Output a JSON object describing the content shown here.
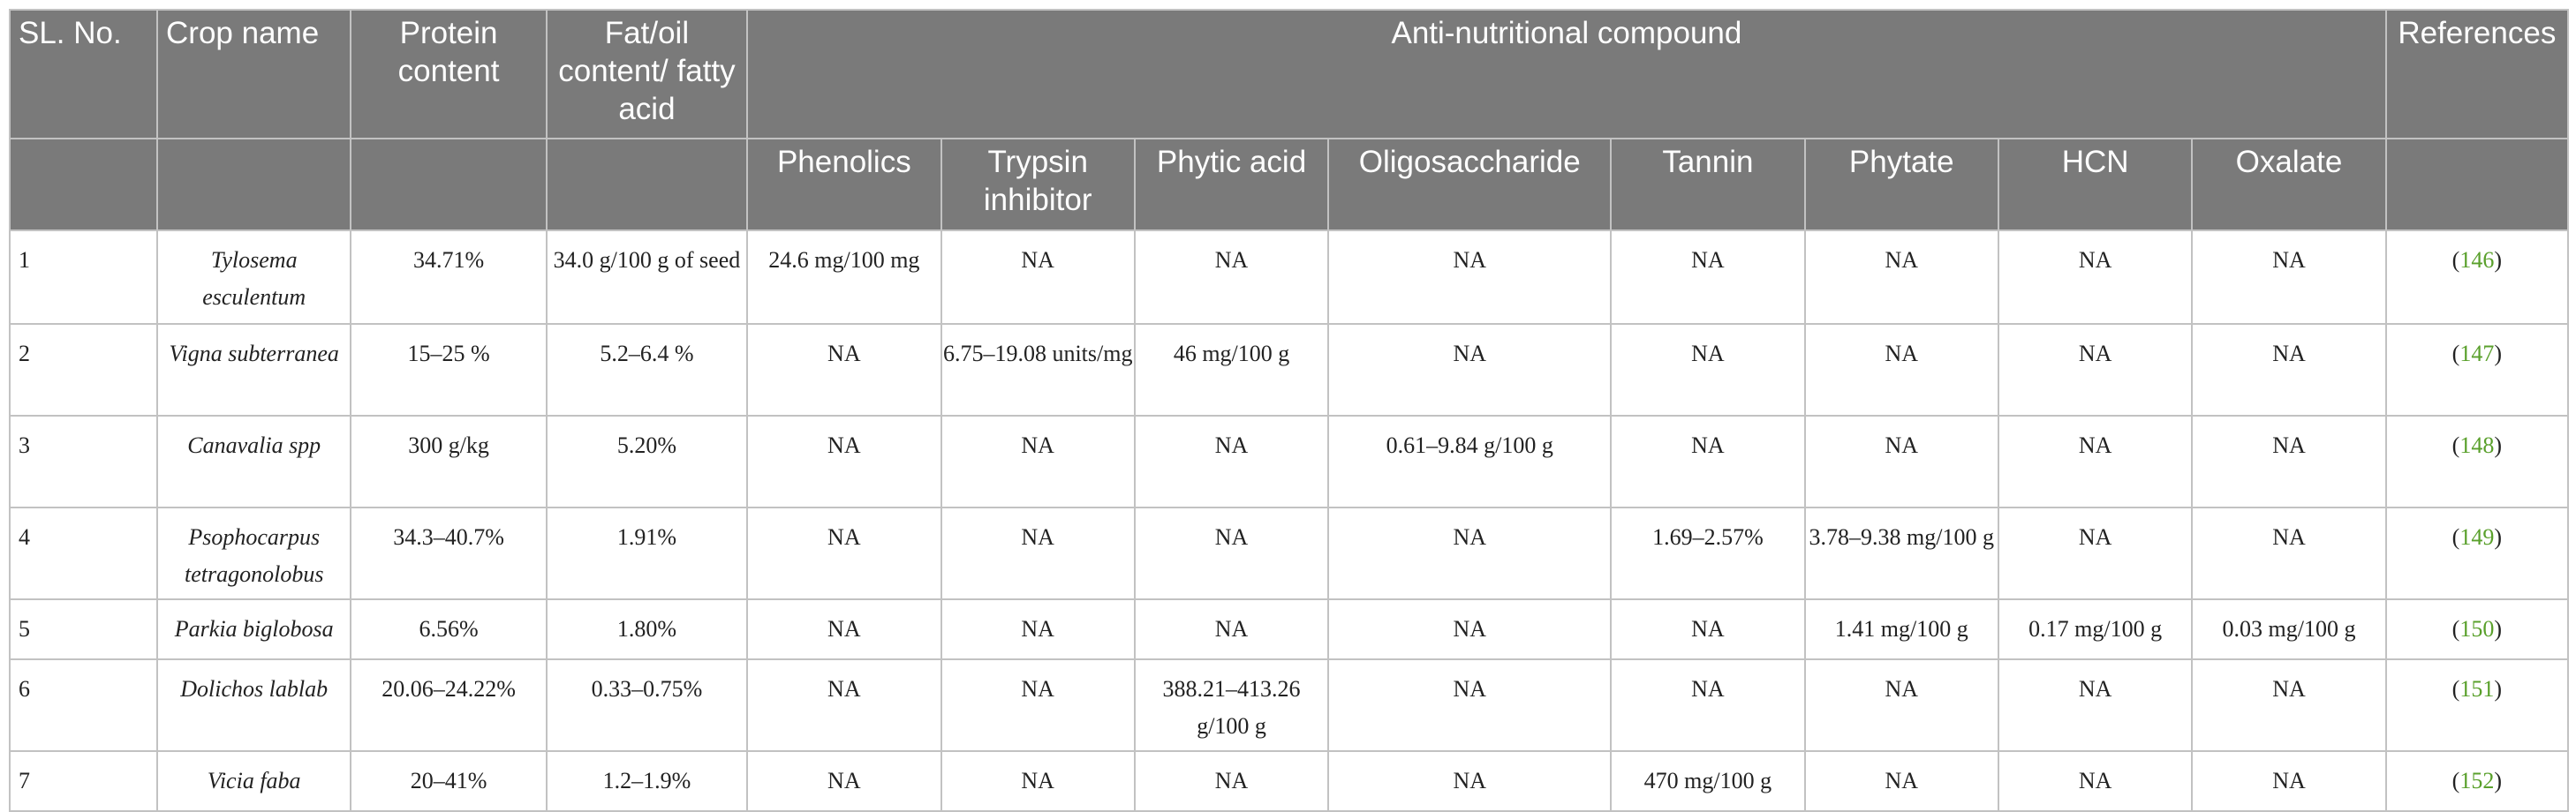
{
  "headers": {
    "sl_no": "SL. No.",
    "crop_name": "Crop name",
    "protein_content": "Protein content",
    "fat_oil": "Fat/oil content/ fatty acid",
    "anti_nutritional": "Anti-nutritional compound",
    "references": "References",
    "sub": {
      "phenolics": "Phenolics",
      "trypsin_inhibitor": "Trypsin inhibitor",
      "phytic_acid": "Phytic acid",
      "oligosaccharide": "Oligosaccharide",
      "tannin": "Tannin",
      "phytate": "Phytate",
      "hcn": "HCN",
      "oxalate": "Oxalate"
    }
  },
  "rows": [
    {
      "sl": "1",
      "crop": "Tylosema esculentum",
      "protein": "34.71%",
      "fat": "34.0 g/100 g of seed",
      "phenolics": "24.6 mg/100 mg",
      "trypsin": "NA",
      "phytic": "NA",
      "oligo": "NA",
      "tannin": "NA",
      "phytate": "NA",
      "hcn": "NA",
      "oxalate": "NA",
      "ref_open": "(",
      "ref": "146",
      "ref_close": ")"
    },
    {
      "sl": "2",
      "crop": "Vigna subterranea",
      "protein": "15–25 %",
      "fat": "5.2–6.4 %",
      "phenolics": "NA",
      "trypsin": "6.75–19.08 units/mg",
      "phytic": "46 mg/100 g",
      "oligo": "NA",
      "tannin": "NA",
      "phytate": "NA",
      "hcn": "NA",
      "oxalate": "NA",
      "ref_open": "(",
      "ref": "147",
      "ref_close": ")"
    },
    {
      "sl": "3",
      "crop": "Canavalia spp",
      "protein": "300 g/kg",
      "fat": "5.20%",
      "phenolics": "NA",
      "trypsin": "NA",
      "phytic": "NA",
      "oligo": "0.61–9.84 g/100 g",
      "tannin": "NA",
      "phytate": "NA",
      "hcn": "NA",
      "oxalate": "NA",
      "ref_open": "(",
      "ref": "148",
      "ref_close": ")"
    },
    {
      "sl": "4",
      "crop": "Psophocarpus tetragonolobus",
      "protein": "34.3–40.7%",
      "fat": "1.91%",
      "phenolics": "NA",
      "trypsin": "NA",
      "phytic": "NA",
      "oligo": "NA",
      "tannin": "1.69–2.57%",
      "phytate": "3.78–9.38 mg/100 g",
      "hcn": "NA",
      "oxalate": "NA",
      "ref_open": "(",
      "ref": "149",
      "ref_close": ")"
    },
    {
      "sl": "5",
      "crop": "Parkia biglobosa",
      "protein": "6.56%",
      "fat": "1.80%",
      "phenolics": "NA",
      "trypsin": "NA",
      "phytic": "NA",
      "oligo": "NA",
      "tannin": "NA",
      "phytate": "1.41 mg/100 g",
      "hcn": "0.17 mg/100 g",
      "oxalate": "0.03 mg/100 g",
      "ref_open": "(",
      "ref": "150",
      "ref_close": ")"
    },
    {
      "sl": "6",
      "crop": "Dolichos lablab",
      "protein": "20.06–24.22%",
      "fat": "0.33–0.75%",
      "phenolics": "NA",
      "trypsin": "NA",
      "phytic": "388.21–413.26 g/100 g",
      "oligo": "NA",
      "tannin": "NA",
      "phytate": "NA",
      "hcn": "NA",
      "oxalate": "NA",
      "ref_open": "(",
      "ref": "151",
      "ref_close": ")"
    },
    {
      "sl": "7",
      "crop": "Vicia faba",
      "protein": "20–41%",
      "fat": "1.2–1.9%",
      "phenolics": "NA",
      "trypsin": "NA",
      "phytic": "NA",
      "oligo": "NA",
      "tannin": "470 mg/100 g",
      "phytate": "NA",
      "hcn": "NA",
      "oxalate": "NA",
      "ref_open": "(",
      "ref": "152",
      "ref_close": ")"
    }
  ]
}
